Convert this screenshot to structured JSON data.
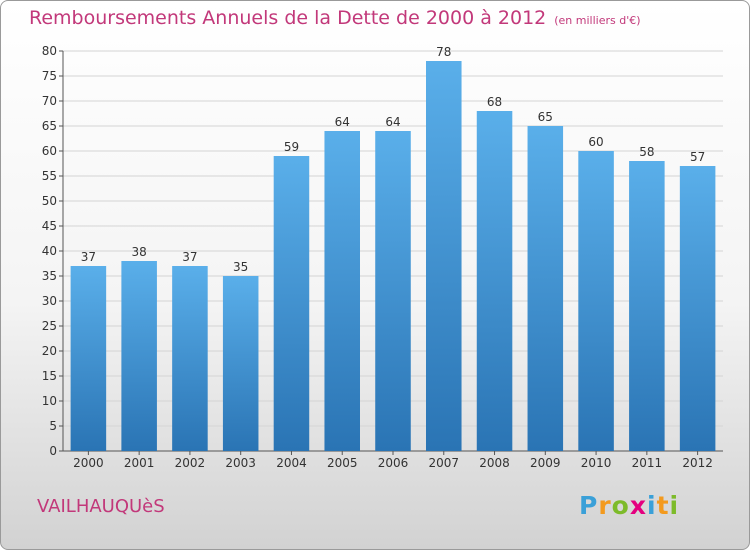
{
  "title": "Remboursements Annuels de la Dette de 2000 à 2012",
  "subtitle": "(en milliers d'€)",
  "city": "VAILHAUQUèS",
  "brand": {
    "letters": [
      "P",
      "r",
      "o",
      "x",
      "i",
      "t",
      "i"
    ],
    "colors": [
      "#3aa0d8",
      "#f39a1e",
      "#7dbb2a",
      "#e4007f",
      "#3aa0d8",
      "#f39a1e",
      "#7dbb2a"
    ]
  },
  "chart_data": {
    "type": "bar",
    "categories": [
      "2000",
      "2001",
      "2002",
      "2003",
      "2004",
      "2005",
      "2006",
      "2007",
      "2008",
      "2009",
      "2010",
      "2011",
      "2012"
    ],
    "values": [
      37,
      38,
      37,
      35,
      59,
      64,
      64,
      78,
      68,
      65,
      60,
      58,
      57
    ],
    "title": "Remboursements Annuels de la Dette de 2000 à 2012",
    "ylim": [
      0,
      80
    ],
    "yticks": [
      0,
      5,
      10,
      15,
      20,
      25,
      30,
      35,
      40,
      45,
      50,
      55,
      60,
      65,
      70,
      75,
      80
    ],
    "grid": true,
    "bar_color_top": "#5aafea",
    "bar_color_bottom": "#2a74b4"
  }
}
